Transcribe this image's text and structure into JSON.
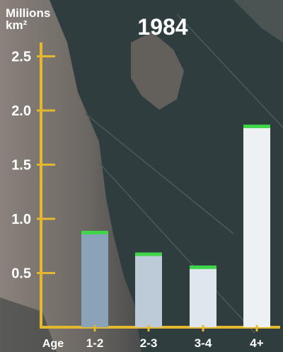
{
  "chart_data": {
    "type": "bar",
    "title": "1984",
    "ylabel_line1": "Millions",
    "ylabel_line2": "km²",
    "xlabel": "Age",
    "categories": [
      "1-2",
      "2-3",
      "3-4",
      "4+"
    ],
    "values": [
      0.87,
      0.67,
      0.55,
      1.85
    ],
    "ylim": [
      0.0,
      2.6
    ],
    "yticks": [
      "0.5",
      "1.0",
      "1.5",
      "2.0",
      "2.5"
    ],
    "ytick_values": [
      0.5,
      1.0,
      1.5,
      2.0,
      2.5
    ],
    "bar_colors": [
      "#8aa3b8",
      "#bccbd7",
      "#dfe6ec",
      "#eef1f3"
    ],
    "cap_color": "#3fd64a",
    "axis_color": "#e4b82e",
    "grid": false
  }
}
